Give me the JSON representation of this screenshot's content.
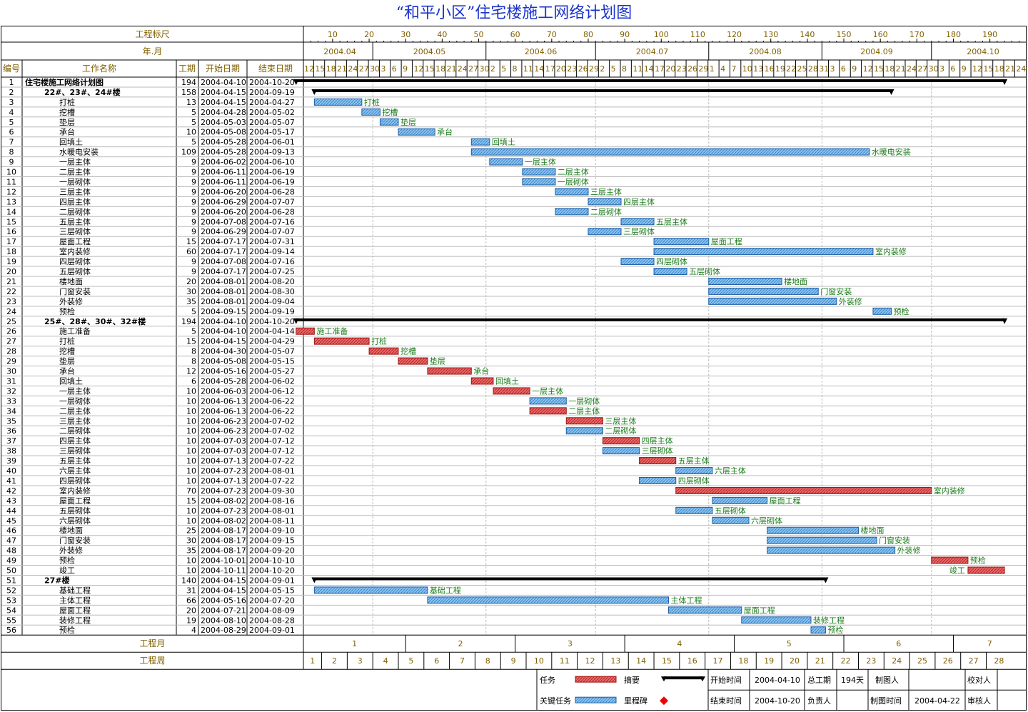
{
  "title": "“和平小区”住宅楼施工网络计划图",
  "header": {
    "scale_label": "工程标尺",
    "scale_ticks": [
      "10",
      "20",
      "30",
      "40",
      "50",
      "60",
      "70",
      "80",
      "90",
      "100",
      "110",
      "120",
      "130",
      "140",
      "150",
      "160",
      "170",
      "180",
      "190"
    ],
    "month_label": "年.月",
    "months": [
      "2004.04",
      "2004.05",
      "2004.06",
      "2004.07",
      "2004.08",
      "2004.09",
      "2004.10"
    ],
    "columns": [
      "编号",
      "工作名称",
      "工期",
      "开始日期",
      "结束日期"
    ],
    "day_ticks": [
      "12",
      "15",
      "18",
      "21",
      "24",
      "27",
      "30",
      "3",
      "6",
      "9",
      "12",
      "15",
      "18",
      "21",
      "24",
      "27",
      "30",
      "2",
      "5",
      "8",
      "11",
      "14",
      "17",
      "20",
      "23",
      "26",
      "29",
      "2",
      "5",
      "8",
      "11",
      "14",
      "17",
      "20",
      "23",
      "26",
      "29",
      "1",
      "4",
      "7",
      "10",
      "13",
      "16",
      "19",
      "22",
      "25",
      "28",
      "31",
      "3",
      "6",
      "9",
      "12",
      "15",
      "18",
      "21",
      "24",
      "27",
      "30",
      "3",
      "6",
      "9",
      "12",
      "15",
      "18",
      "21",
      "24"
    ]
  },
  "footer": {
    "project_month_label": "工程月",
    "project_months": [
      "1",
      "2",
      "3",
      "4",
      "5",
      "6",
      "7"
    ],
    "project_week_label": "工程周",
    "project_weeks": [
      "1",
      "2",
      "3",
      "4",
      "5",
      "6",
      "7",
      "8",
      "9",
      "10",
      "11",
      "12",
      "13",
      "14",
      "15",
      "16",
      "17",
      "18",
      "19",
      "20",
      "21",
      "22",
      "23",
      "24",
      "25",
      "26",
      "27",
      "28"
    ],
    "legend": {
      "task": "任务",
      "summary": "摘要",
      "critical": "关键任务",
      "milestone": "里程碑"
    },
    "info": {
      "start_label": "开始时间",
      "start_value": "2004-04-10",
      "end_label": "结束时间",
      "end_value": "2004-10-20",
      "total_label": "总工期",
      "total_value": "194天",
      "owner_label": "负责人",
      "drawer_label": "制图人",
      "draw_time_label": "制图时间",
      "draw_time_value": "2004-04-22",
      "checker_label": "校对人",
      "reviewer_label": "审核人"
    }
  },
  "colors": {
    "title": "#1a33cc",
    "task": "#6fb0e6",
    "task_border": "#1f5fa8",
    "critical": "#e05454",
    "critical_border": "#a01818",
    "summary": "#000000",
    "milestone": "#ee0000",
    "label": "#1a7a1a",
    "header_text": "#806000"
  },
  "chart_data": {
    "type": "gantt",
    "date_range": [
      "2004-04-10",
      "2004-10-24"
    ],
    "title": "“和平小区”住宅楼施工网络计划图",
    "tasks": [
      {
        "id": "1",
        "name": "住宅楼施工网络计划图",
        "dur": 194,
        "start": "2004-04-10",
        "end": "2004-10-20",
        "kind": "top",
        "level": 0,
        "label": ""
      },
      {
        "id": "2",
        "name": "22#、23#、24#楼",
        "dur": 158,
        "start": "2004-04-15",
        "end": "2004-09-19",
        "kind": "summary",
        "level": 1,
        "label": ""
      },
      {
        "id": "3",
        "name": "打桩",
        "dur": 13,
        "start": "2004-04-15",
        "end": "2004-04-27",
        "kind": "task",
        "level": 2,
        "label": "打桩"
      },
      {
        "id": "4",
        "name": "挖槽",
        "dur": 5,
        "start": "2004-04-28",
        "end": "2004-05-02",
        "kind": "task",
        "level": 2,
        "label": "挖槽"
      },
      {
        "id": "5",
        "name": "垫层",
        "dur": 5,
        "start": "2004-05-03",
        "end": "2004-05-07",
        "kind": "task",
        "level": 2,
        "label": "垫层"
      },
      {
        "id": "6",
        "name": "承台",
        "dur": 10,
        "start": "2004-05-08",
        "end": "2004-05-17",
        "kind": "task",
        "level": 2,
        "label": "承台"
      },
      {
        "id": "7",
        "name": "回填土",
        "dur": 5,
        "start": "2004-05-28",
        "end": "2004-06-01",
        "kind": "task",
        "level": 2,
        "label": "回填土"
      },
      {
        "id": "8",
        "name": "水暖电安装",
        "dur": 109,
        "start": "2004-05-28",
        "end": "2004-09-13",
        "kind": "task",
        "level": 2,
        "label": "水暖电安装"
      },
      {
        "id": "9",
        "name": "一层主体",
        "dur": 9,
        "start": "2004-06-02",
        "end": "2004-06-10",
        "kind": "task",
        "level": 2,
        "label": "一层主体"
      },
      {
        "id": "10",
        "name": "二层主体",
        "dur": 9,
        "start": "2004-06-11",
        "end": "2004-06-19",
        "kind": "task",
        "level": 2,
        "label": "二层主体"
      },
      {
        "id": "11",
        "name": "一层砌体",
        "dur": 9,
        "start": "2004-06-11",
        "end": "2004-06-19",
        "kind": "task",
        "level": 2,
        "label": "一层砌体"
      },
      {
        "id": "12",
        "name": "三层主体",
        "dur": 9,
        "start": "2004-06-20",
        "end": "2004-06-28",
        "kind": "task",
        "level": 2,
        "label": "三层主体"
      },
      {
        "id": "13",
        "name": "四层主体",
        "dur": 9,
        "start": "2004-06-29",
        "end": "2004-07-07",
        "kind": "task",
        "level": 2,
        "label": "四层主体"
      },
      {
        "id": "14",
        "name": "二层砌体",
        "dur": 9,
        "start": "2004-06-20",
        "end": "2004-06-28",
        "kind": "task",
        "level": 2,
        "label": "二层砌体"
      },
      {
        "id": "15",
        "name": "五层主体",
        "dur": 9,
        "start": "2004-07-08",
        "end": "2004-07-16",
        "kind": "task",
        "level": 2,
        "label": "五层主体"
      },
      {
        "id": "16",
        "name": "三层砌体",
        "dur": 9,
        "start": "2004-06-29",
        "end": "2004-07-07",
        "kind": "task",
        "level": 2,
        "label": "三层砌体"
      },
      {
        "id": "17",
        "name": "屋面工程",
        "dur": 15,
        "start": "2004-07-17",
        "end": "2004-07-31",
        "kind": "task",
        "level": 2,
        "label": "屋面工程"
      },
      {
        "id": "18",
        "name": "室内装修",
        "dur": 60,
        "start": "2004-07-17",
        "end": "2004-09-14",
        "kind": "task",
        "level": 2,
        "label": "室内装修"
      },
      {
        "id": "19",
        "name": "四层砌体",
        "dur": 9,
        "start": "2004-07-08",
        "end": "2004-07-16",
        "kind": "task",
        "level": 2,
        "label": "四层砌体"
      },
      {
        "id": "20",
        "name": "五层砌体",
        "dur": 9,
        "start": "2004-07-17",
        "end": "2004-07-25",
        "kind": "task",
        "level": 2,
        "label": "五层砌体"
      },
      {
        "id": "21",
        "name": "楼地面",
        "dur": 20,
        "start": "2004-08-01",
        "end": "2004-08-20",
        "kind": "task",
        "level": 2,
        "label": "楼地面"
      },
      {
        "id": "22",
        "name": "门窗安装",
        "dur": 30,
        "start": "2004-08-01",
        "end": "2004-08-30",
        "kind": "task",
        "level": 2,
        "label": "门窗安装"
      },
      {
        "id": "23",
        "name": "外装修",
        "dur": 35,
        "start": "2004-08-01",
        "end": "2004-09-04",
        "kind": "task",
        "level": 2,
        "label": "外装修"
      },
      {
        "id": "24",
        "name": "预检",
        "dur": 5,
        "start": "2004-09-15",
        "end": "2004-09-19",
        "kind": "task",
        "level": 2,
        "label": "预检"
      },
      {
        "id": "25",
        "name": "25#、28#、30#、32#楼",
        "dur": 194,
        "start": "2004-04-10",
        "end": "2004-10-20",
        "kind": "summary",
        "level": 1,
        "label": ""
      },
      {
        "id": "26",
        "name": "施工准备",
        "dur": 5,
        "start": "2004-04-10",
        "end": "2004-04-14",
        "kind": "critical",
        "level": 2,
        "label": "施工准备"
      },
      {
        "id": "27",
        "name": "打桩",
        "dur": 15,
        "start": "2004-04-15",
        "end": "2004-04-29",
        "kind": "critical",
        "level": 2,
        "label": "打桩"
      },
      {
        "id": "28",
        "name": "挖槽",
        "dur": 8,
        "start": "2004-04-30",
        "end": "2004-05-07",
        "kind": "critical",
        "level": 2,
        "label": "挖槽"
      },
      {
        "id": "29",
        "name": "垫层",
        "dur": 8,
        "start": "2004-05-08",
        "end": "2004-05-15",
        "kind": "critical",
        "level": 2,
        "label": "垫层"
      },
      {
        "id": "30",
        "name": "承台",
        "dur": 12,
        "start": "2004-05-16",
        "end": "2004-05-27",
        "kind": "critical",
        "level": 2,
        "label": "承台"
      },
      {
        "id": "31",
        "name": "回填土",
        "dur": 6,
        "start": "2004-05-28",
        "end": "2004-06-02",
        "kind": "critical",
        "level": 2,
        "label": "回填土"
      },
      {
        "id": "32",
        "name": "一层主体",
        "dur": 10,
        "start": "2004-06-03",
        "end": "2004-06-12",
        "kind": "critical",
        "level": 2,
        "label": "一层主体"
      },
      {
        "id": "33",
        "name": "一层砌体",
        "dur": 10,
        "start": "2004-06-13",
        "end": "2004-06-22",
        "kind": "task",
        "level": 2,
        "label": "一层砌体"
      },
      {
        "id": "34",
        "name": "二层主体",
        "dur": 10,
        "start": "2004-06-13",
        "end": "2004-06-22",
        "kind": "critical",
        "level": 2,
        "label": "二层主体"
      },
      {
        "id": "35",
        "name": "三层主体",
        "dur": 10,
        "start": "2004-06-23",
        "end": "2004-07-02",
        "kind": "critical",
        "level": 2,
        "label": "三层主体"
      },
      {
        "id": "36",
        "name": "二层砌体",
        "dur": 10,
        "start": "2004-06-23",
        "end": "2004-07-02",
        "kind": "task",
        "level": 2,
        "label": "二层砌体"
      },
      {
        "id": "37",
        "name": "四层主体",
        "dur": 10,
        "start": "2004-07-03",
        "end": "2004-07-12",
        "kind": "critical",
        "level": 2,
        "label": "四层主体"
      },
      {
        "id": "38",
        "name": "三层砌体",
        "dur": 10,
        "start": "2004-07-03",
        "end": "2004-07-12",
        "kind": "task",
        "level": 2,
        "label": "三层砌体"
      },
      {
        "id": "39",
        "name": "五层主体",
        "dur": 10,
        "start": "2004-07-13",
        "end": "2004-07-22",
        "kind": "critical",
        "level": 2,
        "label": "五层主体"
      },
      {
        "id": "40",
        "name": "六层主体",
        "dur": 10,
        "start": "2004-07-23",
        "end": "2004-08-01",
        "kind": "task",
        "level": 2,
        "label": "六层主体"
      },
      {
        "id": "41",
        "name": "四层砌体",
        "dur": 10,
        "start": "2004-07-13",
        "end": "2004-07-22",
        "kind": "task",
        "level": 2,
        "label": "四层砌体"
      },
      {
        "id": "42",
        "name": "室内装修",
        "dur": 70,
        "start": "2004-07-23",
        "end": "2004-09-30",
        "kind": "critical",
        "level": 2,
        "label": "室内装修"
      },
      {
        "id": "43",
        "name": "屋面工程",
        "dur": 15,
        "start": "2004-08-02",
        "end": "2004-08-16",
        "kind": "task",
        "level": 2,
        "label": "屋面工程"
      },
      {
        "id": "44",
        "name": "五层砌体",
        "dur": 10,
        "start": "2004-07-23",
        "end": "2004-08-01",
        "kind": "task",
        "level": 2,
        "label": "五层砌体"
      },
      {
        "id": "45",
        "name": "六层砌体",
        "dur": 10,
        "start": "2004-08-02",
        "end": "2004-08-11",
        "kind": "task",
        "level": 2,
        "label": "六层砌体"
      },
      {
        "id": "46",
        "name": "楼地面",
        "dur": 25,
        "start": "2004-08-17",
        "end": "2004-09-10",
        "kind": "task",
        "level": 2,
        "label": "楼地面"
      },
      {
        "id": "47",
        "name": "门窗安装",
        "dur": 30,
        "start": "2004-08-17",
        "end": "2004-09-15",
        "kind": "task",
        "level": 2,
        "label": "门窗安装"
      },
      {
        "id": "48",
        "name": "外装修",
        "dur": 35,
        "start": "2004-08-17",
        "end": "2004-09-20",
        "kind": "task",
        "level": 2,
        "label": "外装修"
      },
      {
        "id": "49",
        "name": "预检",
        "dur": 10,
        "start": "2004-10-01",
        "end": "2004-10-10",
        "kind": "critical",
        "level": 2,
        "label": "预检"
      },
      {
        "id": "50",
        "name": "竣工",
        "dur": 10,
        "start": "2004-10-11",
        "end": "2004-10-20",
        "kind": "critical",
        "level": 2,
        "label": "竣工",
        "label_left": true
      },
      {
        "id": "51",
        "name": "27#楼",
        "dur": 140,
        "start": "2004-04-15",
        "end": "2004-09-01",
        "kind": "summary",
        "level": 1,
        "label": ""
      },
      {
        "id": "52",
        "name": "基础工程",
        "dur": 31,
        "start": "2004-04-15",
        "end": "2004-05-15",
        "kind": "task",
        "level": 2,
        "label": "基础工程"
      },
      {
        "id": "53",
        "name": "主体工程",
        "dur": 66,
        "start": "2004-05-16",
        "end": "2004-07-20",
        "kind": "task",
        "level": 2,
        "label": "主体工程"
      },
      {
        "id": "54",
        "name": "屋面工程",
        "dur": 20,
        "start": "2004-07-21",
        "end": "2004-08-09",
        "kind": "task",
        "level": 2,
        "label": "屋面工程"
      },
      {
        "id": "55",
        "name": "装修工程",
        "dur": 19,
        "start": "2004-08-10",
        "end": "2004-08-28",
        "kind": "task",
        "level": 2,
        "label": "装修工程"
      },
      {
        "id": "56",
        "name": "预检",
        "dur": 4,
        "start": "2004-08-29",
        "end": "2004-09-01",
        "kind": "task",
        "level": 2,
        "label": "预检"
      }
    ]
  }
}
